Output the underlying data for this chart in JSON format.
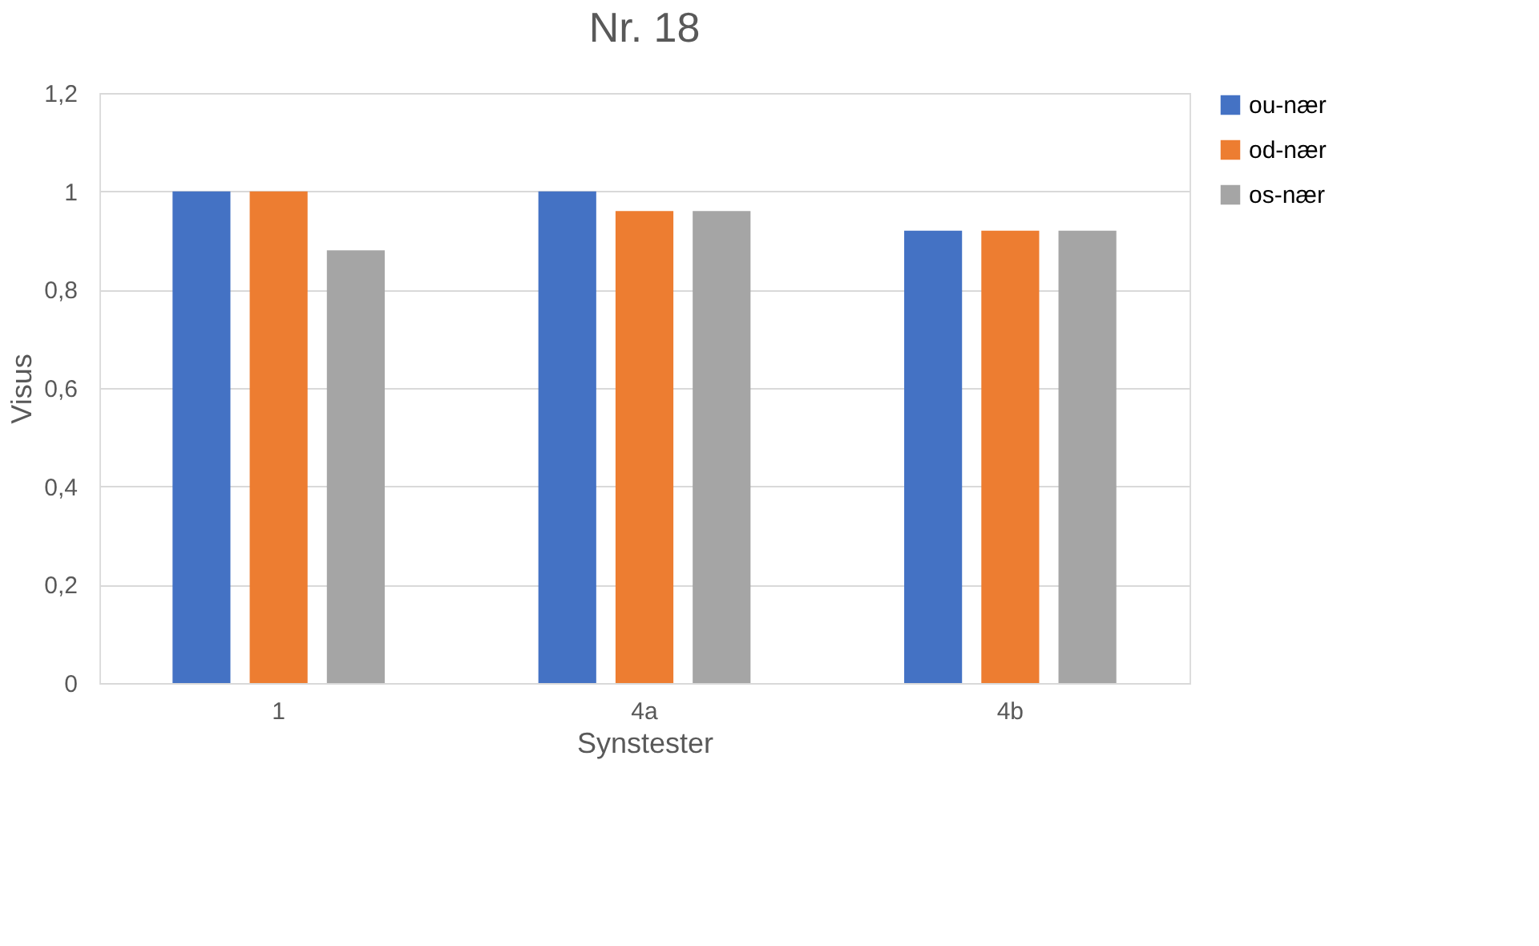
{
  "chart_data": {
    "type": "bar",
    "title": "Nr. 18",
    "xlabel": "Synstester",
    "ylabel": "Visus",
    "categories": [
      "1",
      "4a",
      "4b"
    ],
    "series": [
      {
        "name": "ou-nær",
        "color": "#4472c4",
        "values": [
          1,
          1,
          0.92
        ]
      },
      {
        "name": "od-nær",
        "color": "#ed7d31",
        "values": [
          1,
          0.96,
          0.92
        ]
      },
      {
        "name": "os-nær",
        "color": "#a5a5a5",
        "values": [
          0.88,
          0.96,
          0.92
        ]
      }
    ],
    "ylim": [
      0,
      1.2
    ],
    "yticks": [
      0,
      {
        "value": 0.2,
        "label": "0,2"
      },
      {
        "value": 0.4,
        "label": "0,4"
      },
      {
        "value": 0.6,
        "label": "0,6"
      },
      {
        "value": 0.8,
        "label": "0,8"
      },
      1,
      {
        "value": 1.2,
        "label": "1,2"
      }
    ],
    "grid": "y",
    "legend": "right"
  }
}
